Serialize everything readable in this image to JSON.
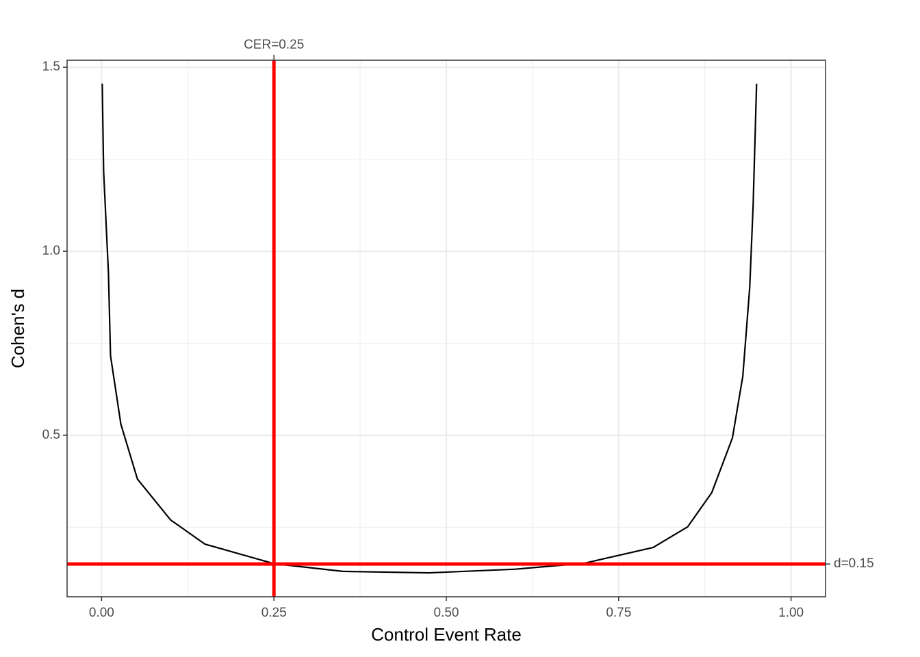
{
  "chart_data": {
    "type": "line",
    "x_label": "Control Event Rate",
    "y_label": "Cohen's d",
    "x": [
      0.001,
      0.003,
      0.01,
      0.013,
      0.028,
      0.052,
      0.1,
      0.15,
      0.25,
      0.35,
      0.475,
      0.6,
      0.7,
      0.8,
      0.85,
      0.885,
      0.915,
      0.93,
      0.94,
      0.945,
      0.95
    ],
    "values": [
      1.455,
      1.217,
      0.94,
      0.716,
      0.53,
      0.381,
      0.27,
      0.204,
      0.151,
      0.13,
      0.126,
      0.136,
      0.152,
      0.195,
      0.251,
      0.344,
      0.493,
      0.66,
      0.9,
      1.125,
      1.455
    ],
    "color": "#000000",
    "xlim": [
      -0.05,
      1.05
    ],
    "ylim": [
      0.061,
      1.519
    ],
    "xticks": [
      {
        "value": 0,
        "label": "0.00"
      },
      {
        "value": 0.25,
        "label": "0.25"
      },
      {
        "value": 0.5,
        "label": "0.50"
      },
      {
        "value": 0.75,
        "label": "0.75"
      },
      {
        "value": 1,
        "label": "1.00"
      }
    ],
    "yticks": [
      0.5,
      {
        "value": 1,
        "label": "1.0"
      },
      1.5
    ],
    "x_minor_ticks": [
      0.125,
      0.375,
      0.625,
      0.875
    ],
    "y_minor_ticks": [
      0.25,
      0.75,
      1.25
    ],
    "grid": true,
    "vline": {
      "value": 0.25,
      "label": "CER=0.25",
      "color": "#ff0000"
    },
    "hline": {
      "value": 0.15,
      "label": "d=0.15",
      "color": "#ff0000"
    }
  }
}
